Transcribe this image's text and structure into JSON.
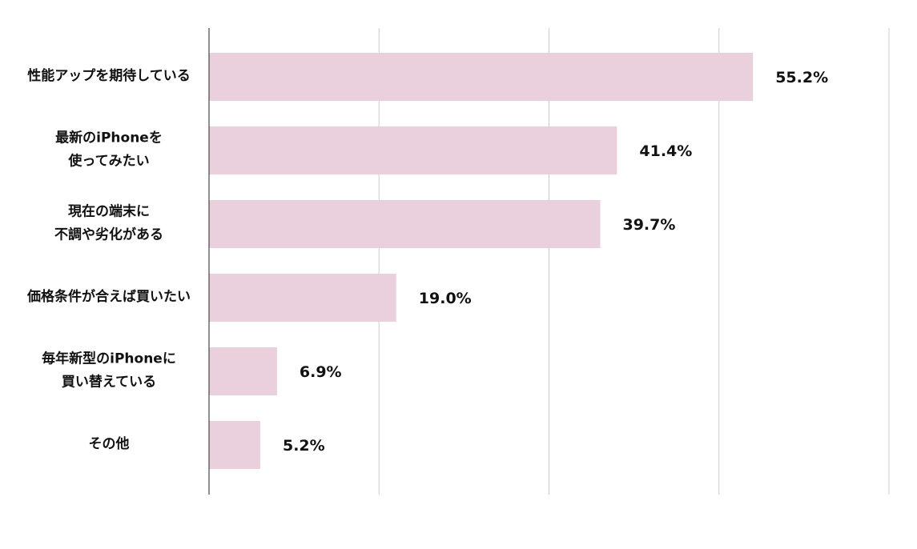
{
  "chart_data": {
    "type": "bar",
    "orientation": "horizontal",
    "categories": [
      [
        "性能アップを期待している"
      ],
      [
        "最新のiPhoneを",
        "使ってみたい"
      ],
      [
        "現在の端末に",
        "不調や劣化がある"
      ],
      [
        "価格条件が合えば買いたい"
      ],
      [
        "毎年新型のiPhoneに",
        "買い替えている"
      ],
      [
        "その他"
      ]
    ],
    "values": [
      55.2,
      41.4,
      39.7,
      19.0,
      6.9,
      5.2
    ],
    "value_labels": [
      "55.2%",
      "41.4%",
      "39.7%",
      "19.0%",
      "6.9%",
      "5.2%"
    ],
    "title": "",
    "xlabel": "",
    "ylabel": "",
    "xlim": [
      0,
      69
    ],
    "grid": true,
    "bar_color": "#e9d0dc",
    "grid_color": "#cccccc",
    "axis_color": "#222222"
  }
}
